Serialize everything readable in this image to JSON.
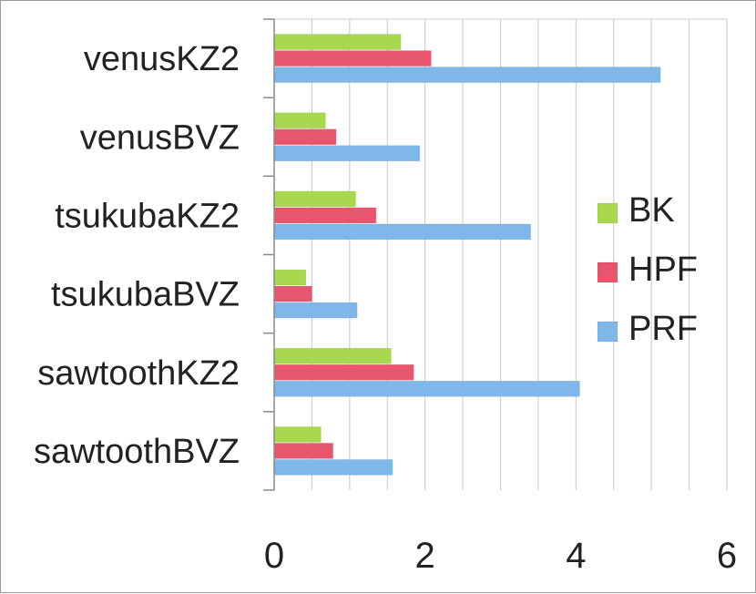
{
  "chart_data": {
    "type": "bar",
    "orientation": "horizontal",
    "title": "",
    "xlabel": "",
    "ylabel": "",
    "categories": [
      "venusKZ2",
      "venusBVZ",
      "tsukubaKZ2",
      "tsukubaBVZ",
      "sawtoothKZ2",
      "sawtoothBVZ"
    ],
    "series": [
      {
        "name": "BK",
        "color": "#a8d84e",
        "values": [
          1.68,
          0.68,
          1.08,
          0.42,
          1.55,
          0.62
        ]
      },
      {
        "name": "HPF",
        "color": "#e8566e",
        "values": [
          2.08,
          0.82,
          1.35,
          0.5,
          1.85,
          0.78
        ]
      },
      {
        "name": "PRF",
        "color": "#7fb8e8",
        "values": [
          5.12,
          1.93,
          3.4,
          1.1,
          4.05,
          1.57
        ]
      }
    ],
    "xlim": [
      0,
      6
    ],
    "xticks": [
      "0",
      "2",
      "4",
      "6"
    ],
    "grid": true,
    "legend_position": "right"
  }
}
